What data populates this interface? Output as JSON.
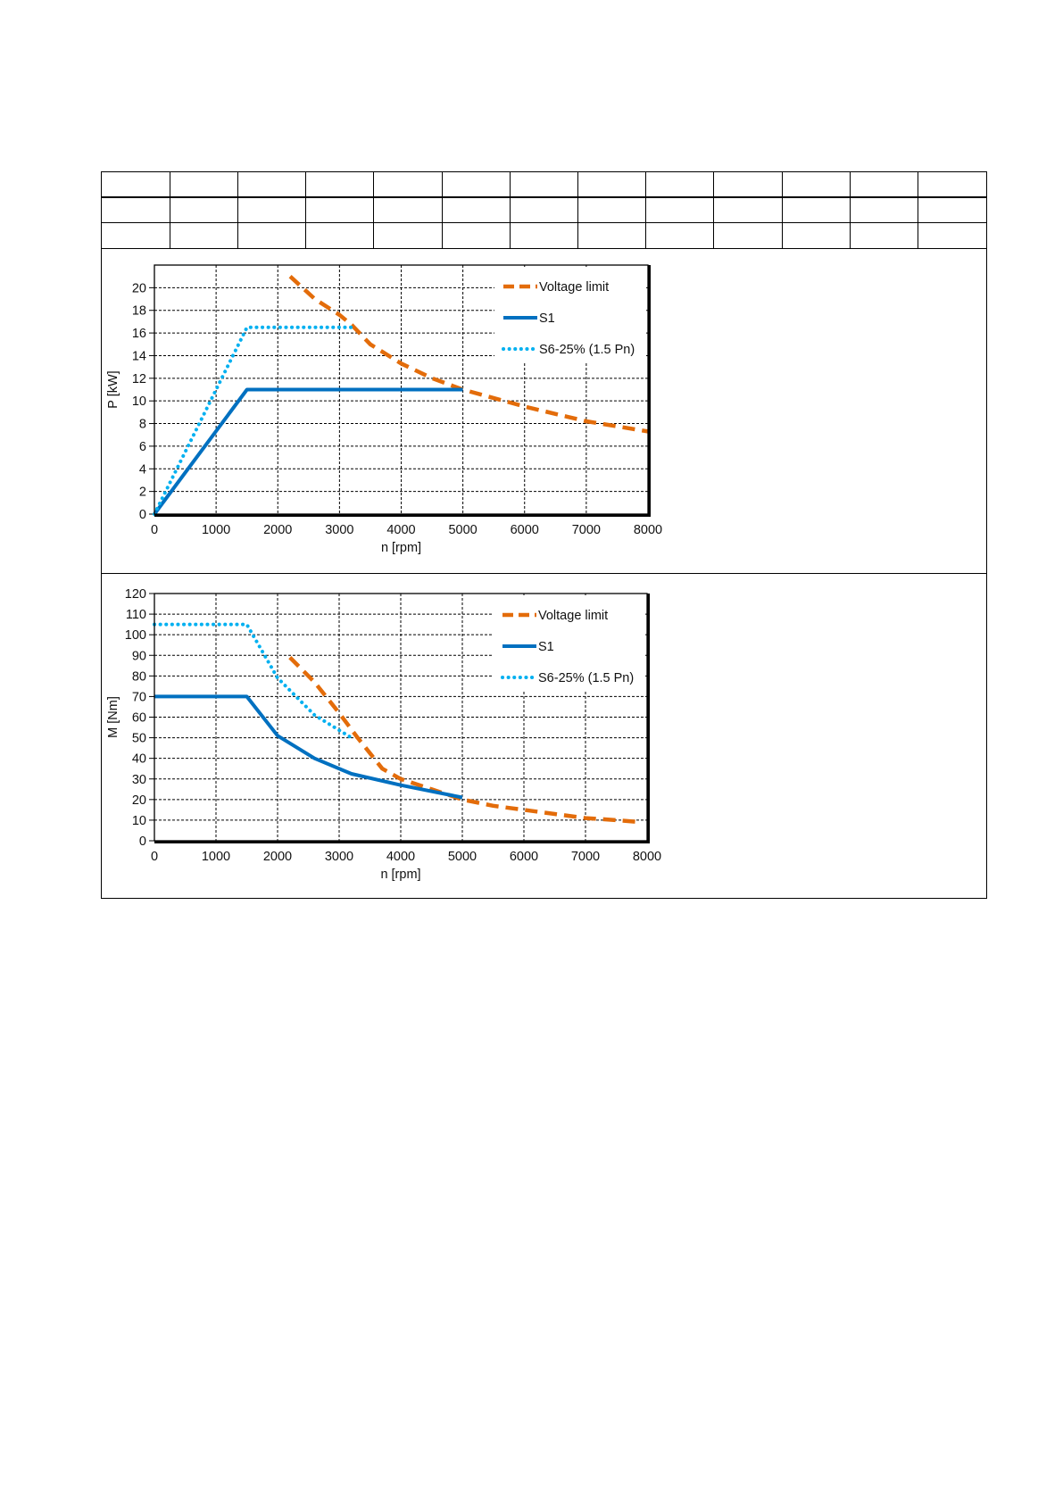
{
  "table": {
    "columns": 13,
    "rows": [
      [
        "",
        "",
        "",
        "",
        "",
        "",
        "",
        "",
        "",
        "",
        "",
        "",
        ""
      ],
      [
        "",
        "",
        "",
        "",
        "",
        "",
        "",
        "",
        "",
        "",
        "",
        "",
        ""
      ],
      [
        "",
        "",
        "",
        "",
        "",
        "",
        "",
        "",
        "",
        "",
        "",
        "",
        ""
      ]
    ]
  },
  "colors": {
    "voltage_limit": "#E36C0A",
    "s1": "#0070C0",
    "s6": "#00B0F0",
    "grid": "#000000"
  },
  "chart_data": [
    {
      "id": "power",
      "type": "line",
      "title": "",
      "xlabel": "n [rpm]",
      "ylabel": "P [kW]",
      "xlim": [
        0,
        8000
      ],
      "ylim": [
        0,
        22
      ],
      "xticks": [
        0,
        1000,
        2000,
        3000,
        4000,
        5000,
        6000,
        7000,
        8000
      ],
      "yticks": [
        0,
        2,
        4,
        6,
        8,
        10,
        12,
        14,
        16,
        18,
        20
      ],
      "grid": true,
      "legend_position": "top-right",
      "series": [
        {
          "name": "Voltage limit",
          "style": "dashed",
          "color": "#E36C0A",
          "x": [
            2200,
            2600,
            3000,
            3200,
            3500,
            4000,
            4500,
            5000,
            6000,
            7000,
            8000
          ],
          "y": [
            21,
            19,
            17.6,
            16.7,
            15,
            13.3,
            12,
            11,
            9.5,
            8.2,
            7.3
          ]
        },
        {
          "name": "S1",
          "style": "solid",
          "color": "#0070C0",
          "x": [
            0,
            1500,
            5000
          ],
          "y": [
            0,
            11,
            11
          ]
        },
        {
          "name": "S6-25% (1.5 Pn)",
          "style": "dotted",
          "color": "#00B0F0",
          "x": [
            0,
            1500,
            3200
          ],
          "y": [
            0,
            16.5,
            16.5
          ]
        }
      ]
    },
    {
      "id": "torque",
      "type": "line",
      "title": "",
      "xlabel": "n [rpm]",
      "ylabel": "M [Nm]",
      "xlim": [
        0,
        8000
      ],
      "ylim": [
        0,
        120
      ],
      "xticks": [
        0,
        1000,
        2000,
        3000,
        4000,
        5000,
        6000,
        7000,
        8000
      ],
      "yticks": [
        0,
        10,
        20,
        30,
        40,
        50,
        60,
        70,
        80,
        90,
        100,
        110,
        120
      ],
      "grid": true,
      "legend_position": "top-right",
      "series": [
        {
          "name": "Voltage limit",
          "style": "dashed",
          "color": "#E36C0A",
          "x": [
            2200,
            2600,
            3000,
            3300,
            3700,
            4000,
            4500,
            5000,
            5500,
            6000,
            6500,
            7000,
            7500,
            7900
          ],
          "y": [
            89,
            77,
            62,
            50,
            35,
            30,
            25,
            20,
            17,
            15,
            13,
            11,
            10,
            9
          ]
        },
        {
          "name": "S1",
          "style": "solid",
          "color": "#0070C0",
          "x": [
            0,
            1500,
            2000,
            2600,
            3200,
            4000,
            5000
          ],
          "y": [
            70,
            70,
            51,
            40,
            32.5,
            27,
            21
          ]
        },
        {
          "name": "S6-25% (1.5 Pn)",
          "style": "dotted",
          "color": "#00B0F0",
          "x": [
            0,
            1500,
            2000,
            2600,
            3200
          ],
          "y": [
            105,
            105,
            79,
            61,
            50
          ]
        }
      ]
    }
  ]
}
